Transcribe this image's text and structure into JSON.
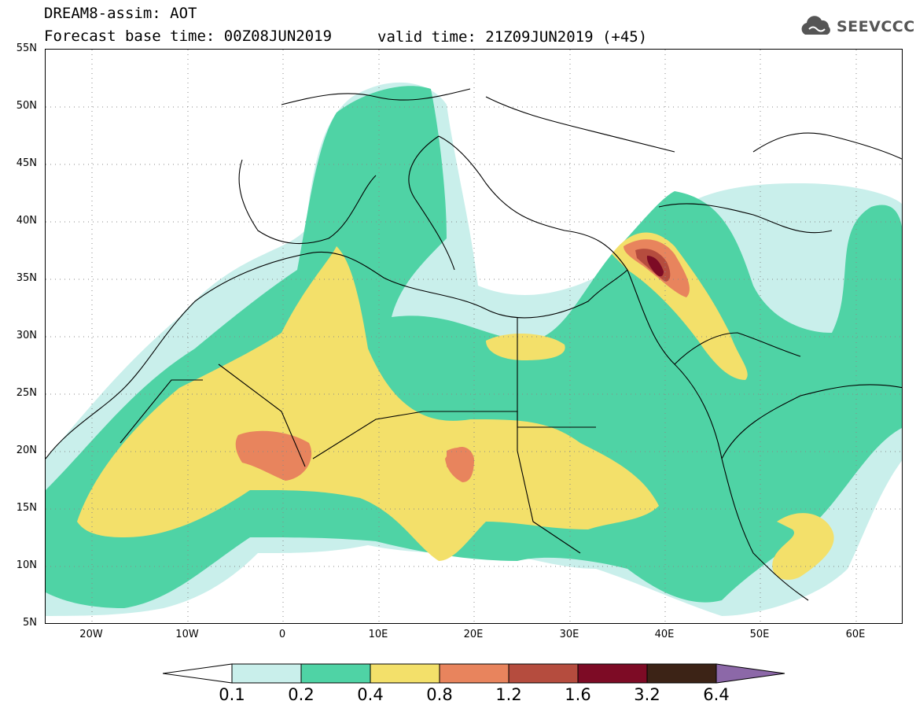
{
  "header": {
    "title_line1": "DREAM8-assim: AOT",
    "title_line2": "Forecast base time: 00Z08JUN2019",
    "valid_time": "valid time: 21Z09JUN2019 (+45)",
    "logo_text": "SEEVCCC"
  },
  "map": {
    "lat_labels": [
      "55N",
      "50N",
      "45N",
      "40N",
      "35N",
      "30N",
      "25N",
      "20N",
      "15N",
      "10N",
      "5N"
    ],
    "lon_labels": [
      "20W",
      "10W",
      "0",
      "10E",
      "20E",
      "30E",
      "40E",
      "50E",
      "60E"
    ],
    "lat_range": [
      5,
      55
    ],
    "lon_range": [
      -25,
      65
    ]
  },
  "legend": {
    "levels": [
      "0.1",
      "0.2",
      "0.4",
      "0.8",
      "1.2",
      "1.6",
      "3.2",
      "6.4"
    ],
    "colors": [
      "#c9efeb",
      "#4fd3a5",
      "#f3e06a",
      "#e8845d",
      "#b54c3e",
      "#7d0b25",
      "#3c2316",
      "#8c68a8"
    ]
  }
}
